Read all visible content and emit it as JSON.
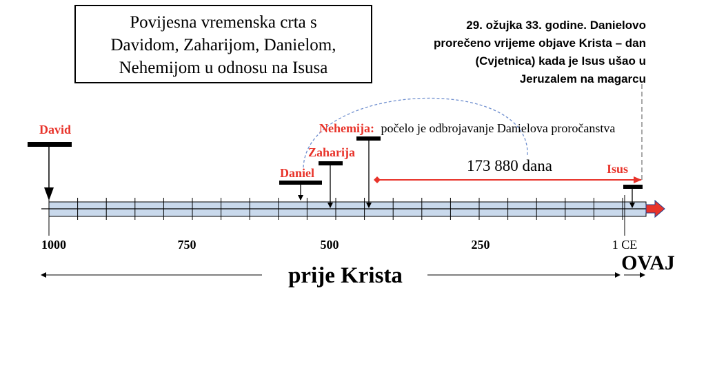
{
  "title_box": {
    "lines": [
      "Povijesna vremenska crta s",
      "Davidom, Zaharijom, Danielom,",
      "Nehemijom u odnosu na Isusa"
    ]
  },
  "annotation": {
    "lines": [
      "29. ožujka 33. godine. Danielovo",
      "prorečeno vrijeme objave Krista – dan",
      "(Cvjetnica) kada je Isus ušao u",
      "Jeruzalem na magarcu"
    ]
  },
  "markers": {
    "david": "David",
    "daniel": "Daniel",
    "zaharija": "Zaharija",
    "nehemija": "Nehemija:",
    "nehemija_note": "počelo je odbrojavanje Danielova proročanstva",
    "isus": "Isus"
  },
  "span_label": "173 880 dana",
  "axis": {
    "ticks": [
      "1000",
      "750",
      "500",
      "250",
      "1 CE"
    ],
    "era_before": "prije Krista",
    "era_now": "OVAJ"
  },
  "colors": {
    "accent_red": "#e8332a",
    "bar_fill": "#c9d9ec",
    "dash_blue": "#6f8fcf",
    "dash_gray": "#8a8a8a"
  }
}
